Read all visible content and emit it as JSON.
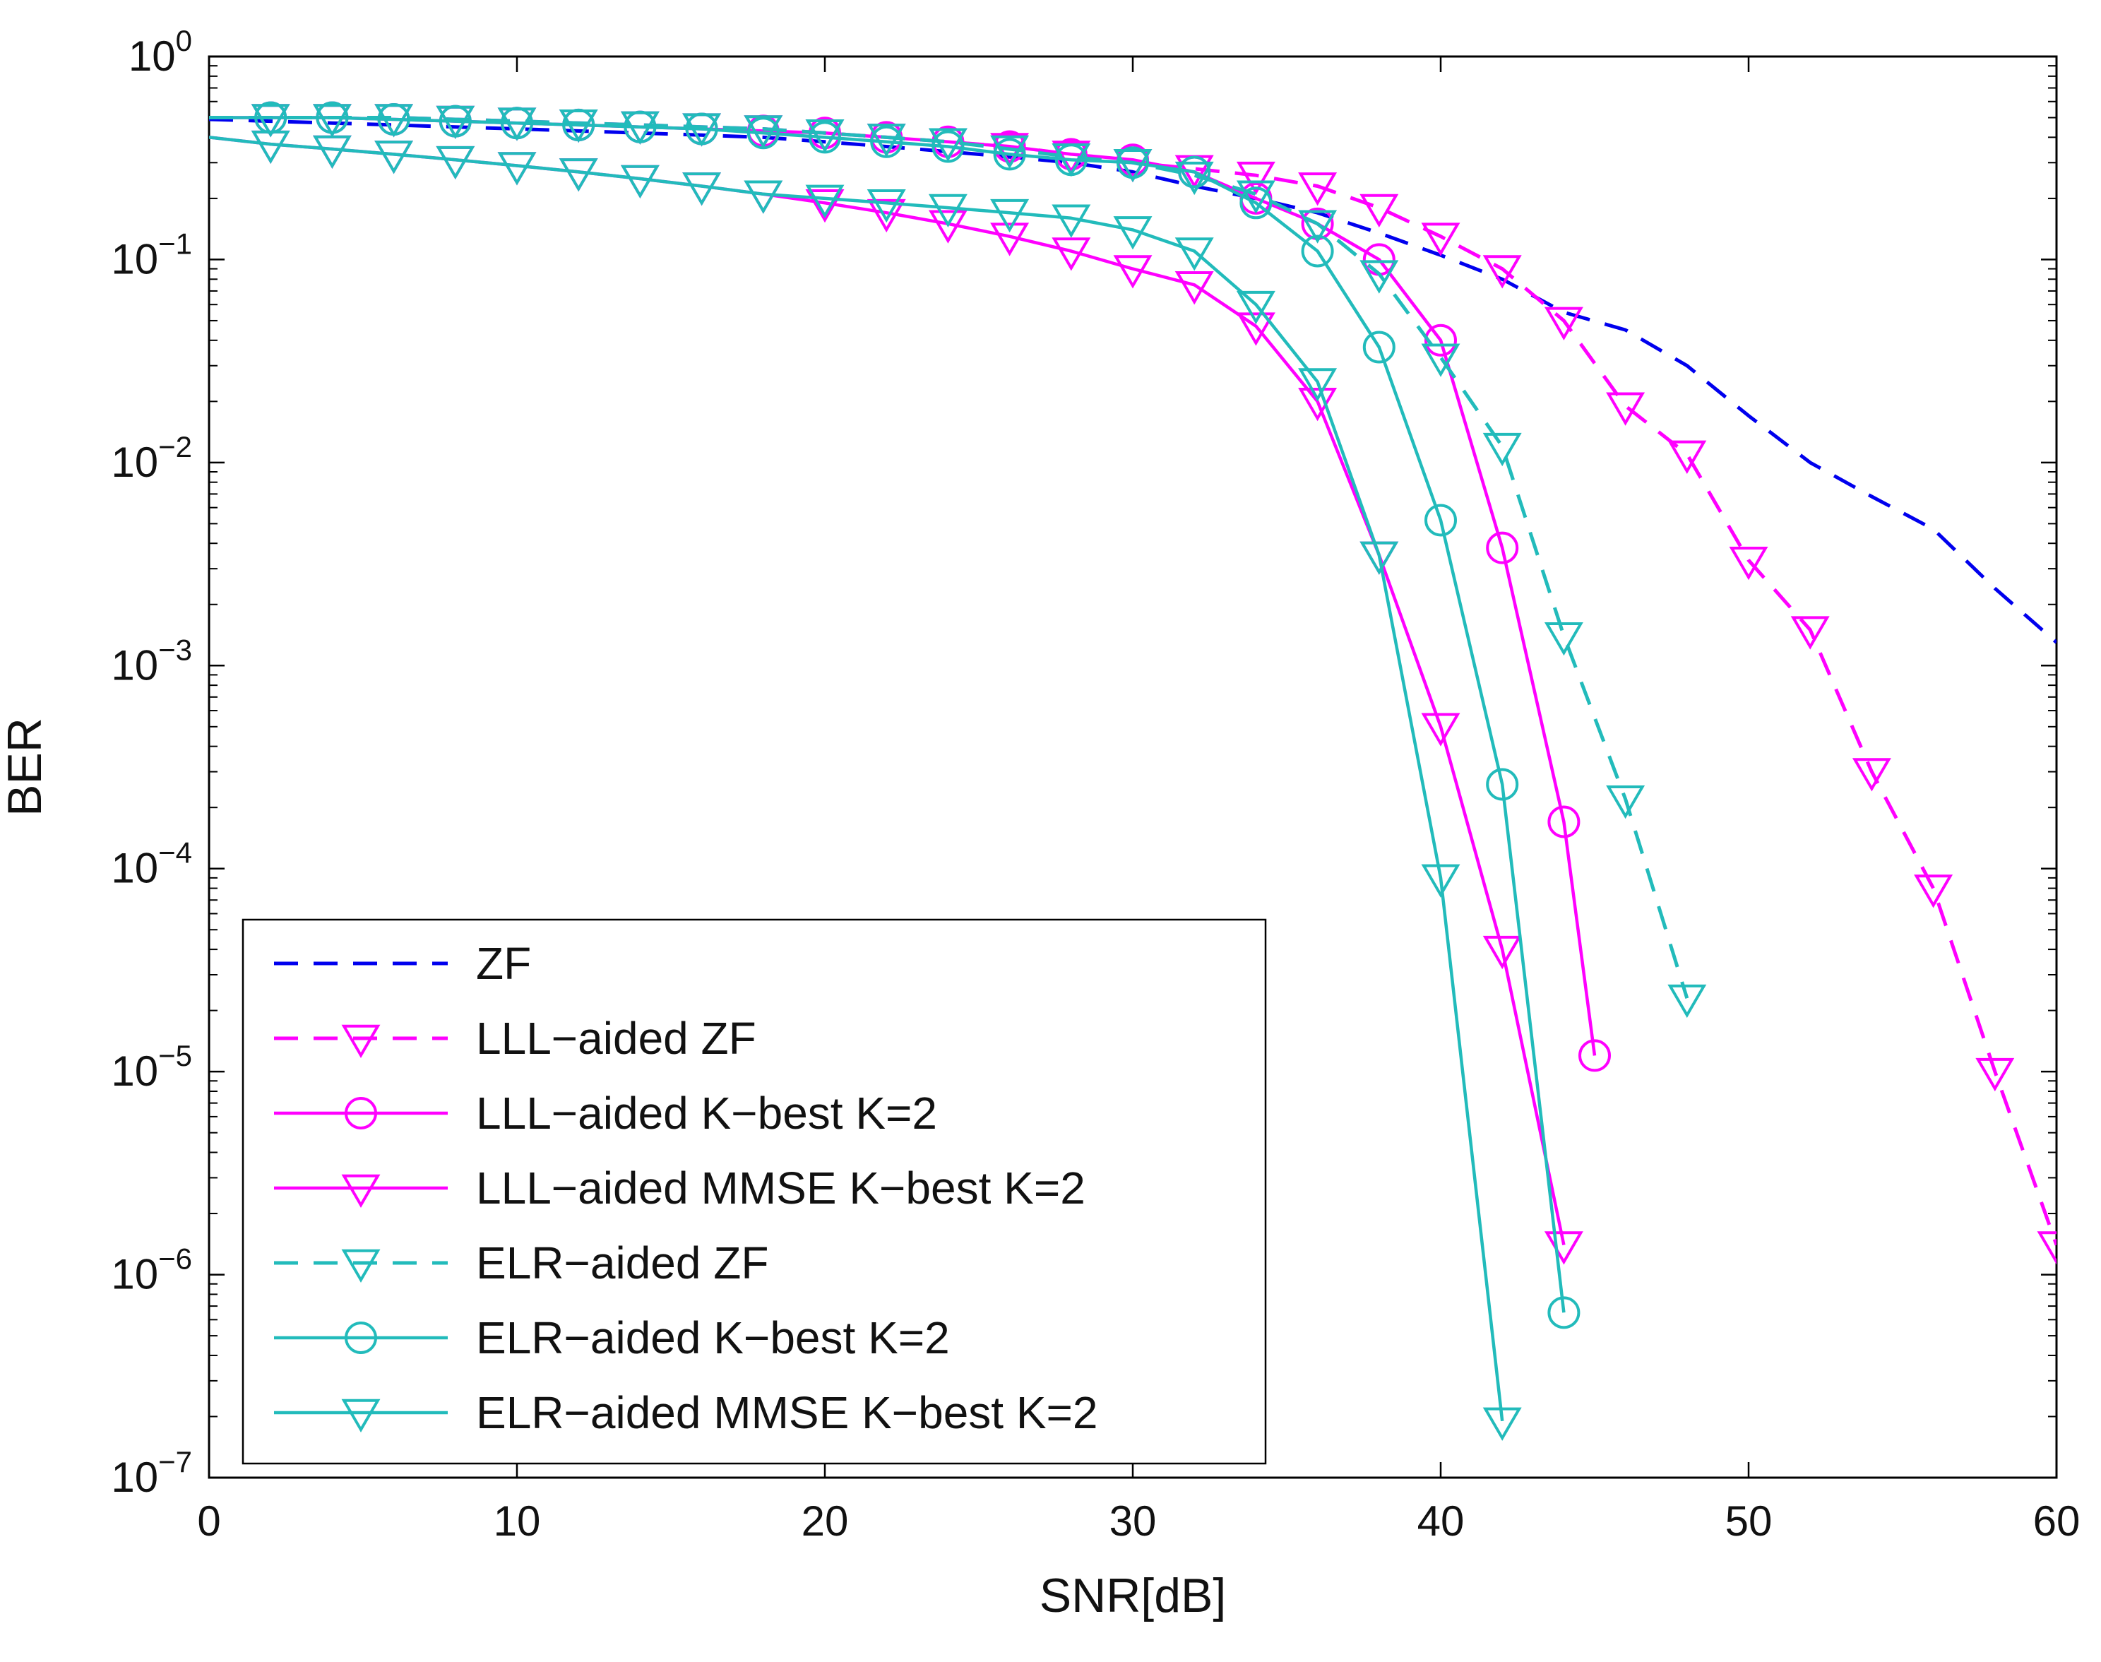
{
  "chart_data": {
    "type": "line",
    "title": "",
    "xlabel": "SNR[dB]",
    "ylabel": "BER",
    "xscale": "linear",
    "yscale": "log",
    "xlim": [
      0,
      60
    ],
    "ylim": [
      1e-07,
      1
    ],
    "xticks": [
      0,
      10,
      20,
      30,
      40,
      50,
      60
    ],
    "xtick_labels": [
      "0",
      "10",
      "20",
      "30",
      "40",
      "50",
      "60"
    ],
    "ytick_exponents": [
      0,
      -1,
      -2,
      -3,
      -4,
      -5,
      -6,
      -7
    ],
    "ytick_base": "10",
    "grid": false,
    "legend_position": "bottom-left",
    "series": [
      {
        "name": "ZF",
        "color": "#0000ee",
        "linestyle": "dashed",
        "marker": "none",
        "x": [
          0,
          2,
          4,
          6,
          8,
          10,
          12,
          14,
          16,
          18,
          20,
          22,
          24,
          26,
          28,
          30,
          32,
          34,
          36,
          38,
          40,
          42,
          44,
          46,
          48,
          50,
          52,
          54,
          56,
          58,
          60
        ],
        "y": [
          0.49,
          0.48,
          0.47,
          0.46,
          0.45,
          0.44,
          0.43,
          0.42,
          0.41,
          0.4,
          0.38,
          0.36,
          0.34,
          0.32,
          0.3,
          0.27,
          0.23,
          0.2,
          0.17,
          0.135,
          0.105,
          0.08,
          0.055,
          0.045,
          0.03,
          0.017,
          0.01,
          0.0068,
          0.0047,
          0.0024,
          0.0013
        ]
      },
      {
        "name": "LLL−aided ZF",
        "color": "#ff00ff",
        "linestyle": "dashed",
        "marker": "triangle-down",
        "x": [
          0,
          2,
          4,
          6,
          8,
          10,
          12,
          14,
          16,
          18,
          20,
          22,
          24,
          26,
          28,
          30,
          32,
          34,
          36,
          38,
          40,
          42,
          44,
          46,
          48,
          50,
          52,
          54,
          56,
          58,
          60
        ],
        "y": [
          0.5,
          0.5,
          0.5,
          0.5,
          0.49,
          0.48,
          0.47,
          0.46,
          0.45,
          0.44,
          0.42,
          0.4,
          0.38,
          0.36,
          0.33,
          0.3,
          0.28,
          0.26,
          0.23,
          0.18,
          0.13,
          0.09,
          0.05,
          0.019,
          0.011,
          0.0033,
          0.0015,
          0.0003,
          8e-05,
          1e-05,
          1.4e-06
        ]
      },
      {
        "name": "LLL−aided K−best K=2",
        "color": "#ff00ff",
        "linestyle": "solid",
        "marker": "circle",
        "x": [
          0,
          2,
          4,
          6,
          8,
          10,
          12,
          14,
          16,
          18,
          20,
          22,
          24,
          26,
          28,
          30,
          32,
          34,
          36,
          38,
          40,
          42,
          44,
          45
        ],
        "y": [
          0.5,
          0.5,
          0.5,
          0.49,
          0.48,
          0.47,
          0.46,
          0.45,
          0.44,
          0.43,
          0.42,
          0.4,
          0.38,
          0.36,
          0.33,
          0.31,
          0.27,
          0.2,
          0.15,
          0.1,
          0.04,
          0.0038,
          0.00017,
          1.2e-05
        ]
      },
      {
        "name": "LLL−aided MMSE K−best K=2",
        "color": "#ff00ff",
        "linestyle": "solid",
        "marker": "triangle-down",
        "x": [
          0,
          2,
          4,
          6,
          8,
          10,
          12,
          14,
          16,
          18,
          20,
          22,
          24,
          26,
          28,
          30,
          32,
          34,
          36,
          38,
          40,
          42,
          44
        ],
        "y": [
          0.4,
          0.37,
          0.35,
          0.33,
          0.31,
          0.29,
          0.27,
          0.25,
          0.23,
          0.21,
          0.19,
          0.17,
          0.15,
          0.13,
          0.11,
          0.09,
          0.075,
          0.047,
          0.02,
          0.0035,
          0.0005,
          4e-05,
          1.4e-06
        ]
      },
      {
        "name": "ELR−aided ZF",
        "color": "#22bbbb",
        "linestyle": "dashed",
        "marker": "triangle-down",
        "x": [
          0,
          2,
          4,
          6,
          8,
          10,
          12,
          14,
          16,
          18,
          20,
          22,
          24,
          26,
          28,
          30,
          32,
          34,
          36,
          38,
          40,
          42,
          44,
          46,
          48
        ],
        "y": [
          0.5,
          0.5,
          0.5,
          0.5,
          0.49,
          0.48,
          0.47,
          0.46,
          0.45,
          0.44,
          0.42,
          0.4,
          0.38,
          0.35,
          0.32,
          0.3,
          0.26,
          0.21,
          0.15,
          0.085,
          0.033,
          0.012,
          0.0014,
          0.00022,
          2.3e-05
        ]
      },
      {
        "name": "ELR−aided K−best K=2",
        "color": "#22bbbb",
        "linestyle": "solid",
        "marker": "circle",
        "x": [
          0,
          2,
          4,
          6,
          8,
          10,
          12,
          14,
          16,
          18,
          20,
          22,
          24,
          26,
          28,
          30,
          32,
          34,
          36,
          38,
          40,
          42,
          44
        ],
        "y": [
          0.5,
          0.5,
          0.5,
          0.49,
          0.48,
          0.47,
          0.46,
          0.45,
          0.44,
          0.42,
          0.4,
          0.38,
          0.36,
          0.33,
          0.31,
          0.3,
          0.27,
          0.19,
          0.11,
          0.037,
          0.0052,
          0.00026,
          6.5e-07
        ]
      },
      {
        "name": "ELR−aided MMSE K−best K=2",
        "color": "#22bbbb",
        "linestyle": "solid",
        "marker": "triangle-down",
        "x": [
          0,
          2,
          4,
          6,
          8,
          10,
          12,
          14,
          16,
          18,
          20,
          22,
          24,
          26,
          28,
          30,
          32,
          34,
          36,
          38,
          40,
          42
        ],
        "y": [
          0.4,
          0.37,
          0.35,
          0.33,
          0.31,
          0.29,
          0.27,
          0.25,
          0.23,
          0.21,
          0.2,
          0.19,
          0.18,
          0.17,
          0.16,
          0.14,
          0.11,
          0.06,
          0.025,
          0.0035,
          9e-05,
          1.9e-07
        ]
      }
    ]
  }
}
